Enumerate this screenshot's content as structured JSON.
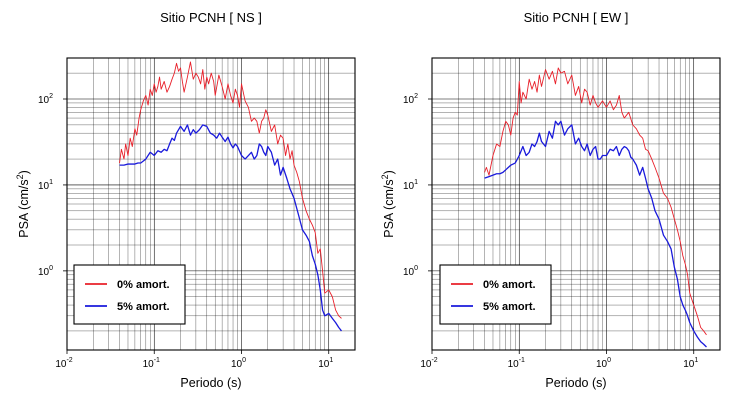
{
  "chart_data": [
    {
      "type": "line",
      "title": "Sitio PCNH [ NS ]",
      "xlabel": "Periodo (s)",
      "ylabel": "PSA (cm/s2)",
      "x_scale": "log",
      "y_scale": "log",
      "xlim": [
        0.01,
        20
      ],
      "ylim": [
        0.12,
        300
      ],
      "grid": true,
      "legend_position": "bottom-left",
      "x_ticks": [
        {
          "base": "10",
          "exp": "-2"
        },
        {
          "base": "10",
          "exp": "-1"
        },
        {
          "base": "10",
          "exp": "0"
        },
        {
          "base": "10",
          "exp": "1"
        }
      ],
      "y_ticks": [
        {
          "base": "10",
          "exp": "0"
        },
        {
          "base": "10",
          "exp": "1"
        },
        {
          "base": "10",
          "exp": "2"
        }
      ],
      "series": [
        {
          "name": "0% amort.",
          "color": "#e8202a",
          "x": [
            0.04,
            0.042,
            0.045,
            0.047,
            0.05,
            0.053,
            0.056,
            0.06,
            0.063,
            0.067,
            0.07,
            0.075,
            0.08,
            0.085,
            0.09,
            0.095,
            0.1,
            0.105,
            0.11,
            0.115,
            0.12,
            0.13,
            0.14,
            0.15,
            0.16,
            0.17,
            0.18,
            0.19,
            0.2,
            0.21,
            0.22,
            0.24,
            0.26,
            0.28,
            0.3,
            0.32,
            0.34,
            0.36,
            0.38,
            0.4,
            0.42,
            0.45,
            0.48,
            0.5,
            0.55,
            0.6,
            0.65,
            0.7,
            0.75,
            0.8,
            0.85,
            0.9,
            0.95,
            1.0,
            1.1,
            1.2,
            1.3,
            1.4,
            1.5,
            1.6,
            1.7,
            1.8,
            1.9,
            2.0,
            2.2,
            2.4,
            2.6,
            2.8,
            3.0,
            3.2,
            3.4,
            3.6,
            3.8,
            4.0,
            4.3,
            4.6,
            5.0,
            5.5,
            6.0,
            6.5,
            7.0,
            7.5,
            8.0,
            8.5,
            9.0,
            10.0,
            11.0,
            12.0,
            13.0,
            14.0
          ],
          "y": [
            18,
            26,
            20,
            30,
            22,
            35,
            28,
            45,
            38,
            60,
            75,
            95,
            110,
            85,
            130,
            110,
            150,
            120,
            140,
            180,
            130,
            160,
            120,
            140,
            170,
            200,
            260,
            210,
            230,
            160,
            120,
            180,
            270,
            170,
            200,
            180,
            150,
            220,
            130,
            180,
            150,
            200,
            160,
            110,
            190,
            140,
            100,
            150,
            110,
            90,
            130,
            110,
            80,
            150,
            95,
            80,
            55,
            60,
            55,
            40,
            55,
            60,
            75,
            65,
            42,
            50,
            30,
            38,
            35,
            22,
            30,
            20,
            25,
            17,
            14,
            11,
            7,
            5,
            4,
            3.4,
            2.8,
            1.6,
            1.8,
            1.0,
            0.55,
            0.6,
            0.5,
            0.35,
            0.3,
            0.28
          ]
        },
        {
          "name": "5% amort.",
          "color": "#1a1adb",
          "x": [
            0.04,
            0.045,
            0.05,
            0.055,
            0.06,
            0.065,
            0.07,
            0.075,
            0.08,
            0.085,
            0.09,
            0.1,
            0.11,
            0.12,
            0.13,
            0.14,
            0.15,
            0.16,
            0.17,
            0.18,
            0.2,
            0.22,
            0.24,
            0.26,
            0.28,
            0.3,
            0.33,
            0.36,
            0.4,
            0.44,
            0.48,
            0.52,
            0.56,
            0.6,
            0.65,
            0.7,
            0.75,
            0.8,
            0.85,
            0.9,
            1.0,
            1.1,
            1.2,
            1.3,
            1.4,
            1.5,
            1.6,
            1.7,
            1.8,
            1.9,
            2.0,
            2.2,
            2.4,
            2.6,
            2.8,
            3.0,
            3.3,
            3.6,
            4.0,
            4.5,
            5.0,
            5.5,
            6.0,
            6.5,
            7.0,
            7.5,
            8.0,
            8.5,
            9.0,
            10.0,
            11.0,
            12.0,
            13.0,
            14.0
          ],
          "y": [
            17,
            17,
            17.5,
            17.5,
            17.5,
            18,
            18,
            19,
            20,
            22,
            24,
            22,
            25,
            24,
            26,
            25,
            30,
            35,
            33,
            40,
            48,
            42,
            50,
            38,
            44,
            40,
            44,
            50,
            48,
            40,
            38,
            35,
            40,
            36,
            32,
            36,
            30,
            27,
            30,
            28,
            22,
            20,
            22,
            24,
            20,
            22,
            30,
            28,
            24,
            22,
            28,
            24,
            17,
            20,
            13,
            16,
            12,
            9,
            7,
            4.5,
            3,
            2.6,
            2.2,
            1.5,
            1.2,
            0.9,
            0.6,
            0.35,
            0.3,
            0.32,
            0.28,
            0.25,
            0.22,
            0.2
          ]
        }
      ]
    },
    {
      "type": "line",
      "title": "Sitio PCNH [ EW ]",
      "xlabel": "Periodo (s)",
      "ylabel": "PSA (cm/s2)",
      "x_scale": "log",
      "y_scale": "log",
      "xlim": [
        0.01,
        20
      ],
      "ylim": [
        0.12,
        300
      ],
      "grid": true,
      "legend_position": "bottom-left",
      "x_ticks": [
        {
          "base": "10",
          "exp": "-2"
        },
        {
          "base": "10",
          "exp": "-1"
        },
        {
          "base": "10",
          "exp": "0"
        },
        {
          "base": "10",
          "exp": "1"
        }
      ],
      "y_ticks": [
        {
          "base": "10",
          "exp": "0"
        },
        {
          "base": "10",
          "exp": "1"
        },
        {
          "base": "10",
          "exp": "2"
        }
      ],
      "series": [
        {
          "name": "0% amort.",
          "color": "#e8202a",
          "x": [
            0.04,
            0.042,
            0.045,
            0.05,
            0.055,
            0.06,
            0.065,
            0.07,
            0.075,
            0.08,
            0.085,
            0.09,
            0.095,
            0.1,
            0.105,
            0.11,
            0.12,
            0.13,
            0.14,
            0.15,
            0.16,
            0.17,
            0.18,
            0.2,
            0.22,
            0.24,
            0.26,
            0.28,
            0.3,
            0.33,
            0.36,
            0.4,
            0.44,
            0.48,
            0.52,
            0.56,
            0.6,
            0.65,
            0.7,
            0.75,
            0.8,
            0.9,
            1.0,
            1.1,
            1.2,
            1.3,
            1.4,
            1.5,
            1.6,
            1.8,
            2.0,
            2.2,
            2.4,
            2.6,
            2.8,
            3.0,
            3.3,
            3.6,
            4.0,
            4.5,
            5.0,
            5.5,
            6.0,
            6.5,
            7.0,
            7.5,
            8.0,
            8.5,
            9.0,
            10.0,
            11.0,
            12.0,
            13.0,
            14.0
          ],
          "y": [
            14,
            16,
            13,
            22,
            30,
            28,
            42,
            55,
            50,
            38,
            60,
            70,
            65,
            160,
            90,
            120,
            100,
            170,
            130,
            160,
            120,
            190,
            140,
            220,
            170,
            210,
            150,
            230,
            200,
            210,
            150,
            190,
            110,
            140,
            90,
            130,
            120,
            85,
            110,
            90,
            80,
            95,
            80,
            95,
            75,
            85,
            110,
            70,
            60,
            70,
            50,
            45,
            38,
            35,
            26,
            25,
            20,
            16,
            12,
            8,
            7,
            5.5,
            4,
            3,
            2.2,
            1.5,
            1.2,
            0.9,
            0.55,
            0.4,
            0.3,
            0.22,
            0.2,
            0.18
          ]
        },
        {
          "name": "5% amort.",
          "color": "#1a1adb",
          "x": [
            0.04,
            0.045,
            0.05,
            0.055,
            0.06,
            0.065,
            0.07,
            0.075,
            0.08,
            0.085,
            0.09,
            0.1,
            0.11,
            0.12,
            0.13,
            0.14,
            0.15,
            0.16,
            0.17,
            0.18,
            0.2,
            0.22,
            0.24,
            0.26,
            0.28,
            0.3,
            0.33,
            0.36,
            0.4,
            0.44,
            0.48,
            0.52,
            0.56,
            0.6,
            0.65,
            0.7,
            0.75,
            0.8,
            0.85,
            0.9,
            1.0,
            1.1,
            1.2,
            1.3,
            1.4,
            1.5,
            1.6,
            1.7,
            1.8,
            1.9,
            2.0,
            2.2,
            2.4,
            2.6,
            2.8,
            3.0,
            3.3,
            3.6,
            4.0,
            4.5,
            5.0,
            5.5,
            6.0,
            6.5,
            7.0,
            7.5,
            8.0,
            8.5,
            9.0,
            10.0,
            11.0,
            12.0,
            13.0,
            14.0
          ],
          "y": [
            12,
            12.5,
            13,
            13.5,
            13.5,
            14,
            15,
            16,
            17,
            17.5,
            18,
            22,
            28,
            22,
            24,
            30,
            28,
            32,
            40,
            32,
            28,
            42,
            35,
            55,
            50,
            55,
            38,
            45,
            50,
            30,
            35,
            28,
            25,
            30,
            22,
            26,
            28,
            20,
            20,
            22,
            22,
            26,
            25,
            28,
            22,
            26,
            28,
            27,
            25,
            21,
            20,
            17,
            13,
            16,
            12,
            9,
            7,
            5,
            4,
            2.6,
            2.2,
            1.8,
            1.1,
            0.8,
            0.5,
            0.4,
            0.35,
            0.3,
            0.25,
            0.2,
            0.17,
            0.15,
            0.14,
            0.13
          ]
        }
      ]
    }
  ]
}
